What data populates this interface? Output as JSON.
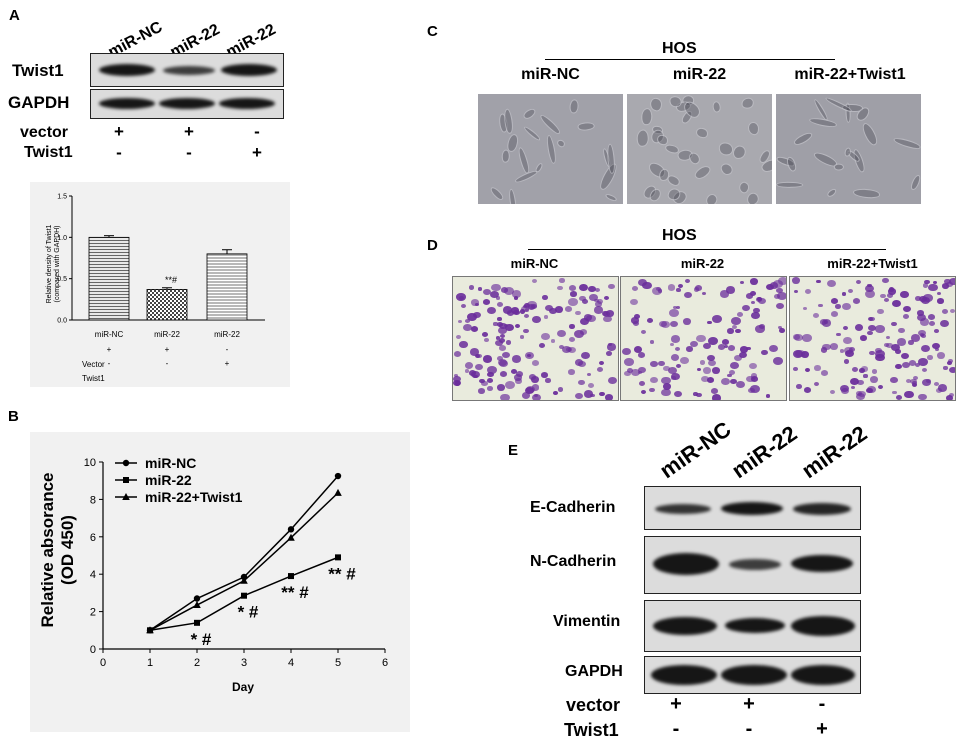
{
  "panels": {
    "A": "A",
    "B": "B",
    "C": "C",
    "D": "D",
    "E": "E"
  },
  "panelA": {
    "lanes": [
      "miR-NC",
      "miR-22",
      "miR-22"
    ],
    "rows": [
      "Twist1",
      "GAPDH"
    ],
    "conditions": [
      {
        "name": "vector",
        "signs": [
          "+",
          "+",
          "-"
        ]
      },
      {
        "name": "Twist1",
        "signs": [
          "-",
          "-",
          "+"
        ]
      }
    ],
    "band_intensity": {
      "Twist1": [
        0.9,
        0.75,
        0.9
      ],
      "GAPDH": [
        0.95,
        0.95,
        0.95
      ]
    }
  },
  "chartA": {
    "ylabel_line1": "Relative density of Twist1",
    "ylabel_line2": "(compared with GAPDH)",
    "ytick_labels": [
      "0.0",
      "0.5",
      "1.0",
      "1.5"
    ],
    "sig": "**#",
    "xcats": [
      "miR-NC",
      "miR-22",
      "miR-22"
    ],
    "table": [
      {
        "name": "Vector",
        "signs": [
          "+",
          "+",
          "-"
        ]
      },
      {
        "name": "Twist1",
        "signs": [
          "-",
          "-",
          "+"
        ]
      }
    ]
  },
  "chartB": {
    "ylabel_line1": "Relative absorance",
    "ylabel_line2": "(OD 450)",
    "xlabel": "Day",
    "xtick_labels": [
      "0",
      "1",
      "2",
      "3",
      "4",
      "5",
      "6"
    ],
    "ytick_labels": [
      "0",
      "2",
      "4",
      "6",
      "8",
      "10"
    ],
    "legend": [
      "miR-NC",
      "miR-22",
      "miR-22+Twist1"
    ],
    "sig": [
      "* #",
      "* #",
      "** #",
      "** #"
    ]
  },
  "chart_data": [
    {
      "type": "bar",
      "categories": [
        "miR-NC",
        "miR-22",
        "miR-22"
      ],
      "values": [
        1.0,
        0.37,
        0.8
      ],
      "errors": [
        0.02,
        0.02,
        0.05
      ],
      "ylabel": "Relative density of Twist1 (compared with GAPDH)",
      "ylim": [
        0,
        1.5
      ],
      "yticks": [
        0.0,
        0.5,
        1.0,
        1.5
      ]
    },
    {
      "type": "line",
      "x": [
        1,
        2,
        3,
        4,
        5
      ],
      "series": [
        {
          "name": "miR-NC",
          "marker": "circle",
          "values": [
            1.0,
            2.7,
            3.85,
            6.4,
            9.25
          ]
        },
        {
          "name": "miR-22",
          "marker": "square",
          "values": [
            1.0,
            1.4,
            2.85,
            3.9,
            4.9
          ]
        },
        {
          "name": "miR-22+Twist1",
          "marker": "triangle",
          "values": [
            1.0,
            2.35,
            3.65,
            5.95,
            8.35
          ]
        }
      ],
      "xlabel": "Day",
      "ylabel": "Relative absorance (OD 450)",
      "xlim": [
        0,
        6
      ],
      "ylim": [
        0,
        10
      ],
      "legend": "top-left"
    }
  ],
  "panelC": {
    "header": "HOS",
    "labels": [
      "miR-NC",
      "miR-22",
      "miR-22+Twist1"
    ]
  },
  "panelD": {
    "header": "HOS",
    "labels": [
      "miR-NC",
      "miR-22",
      "miR-22+Twist1"
    ]
  },
  "panelE": {
    "lanes": [
      "miR-NC",
      "miR-22",
      "miR-22"
    ],
    "rows": [
      "E-Cadherin",
      "N-Cadherin",
      "Vimentin",
      "GAPDH"
    ],
    "conditions": [
      {
        "name": "vector",
        "signs": [
          "+",
          "+",
          "-"
        ]
      },
      {
        "name": "Twist1",
        "signs": [
          "-",
          "-",
          "+"
        ]
      }
    ]
  },
  "colors": {
    "stain": "#6a2d9b",
    "phase_bg": "#9c9ca4",
    "band": "#161616"
  }
}
